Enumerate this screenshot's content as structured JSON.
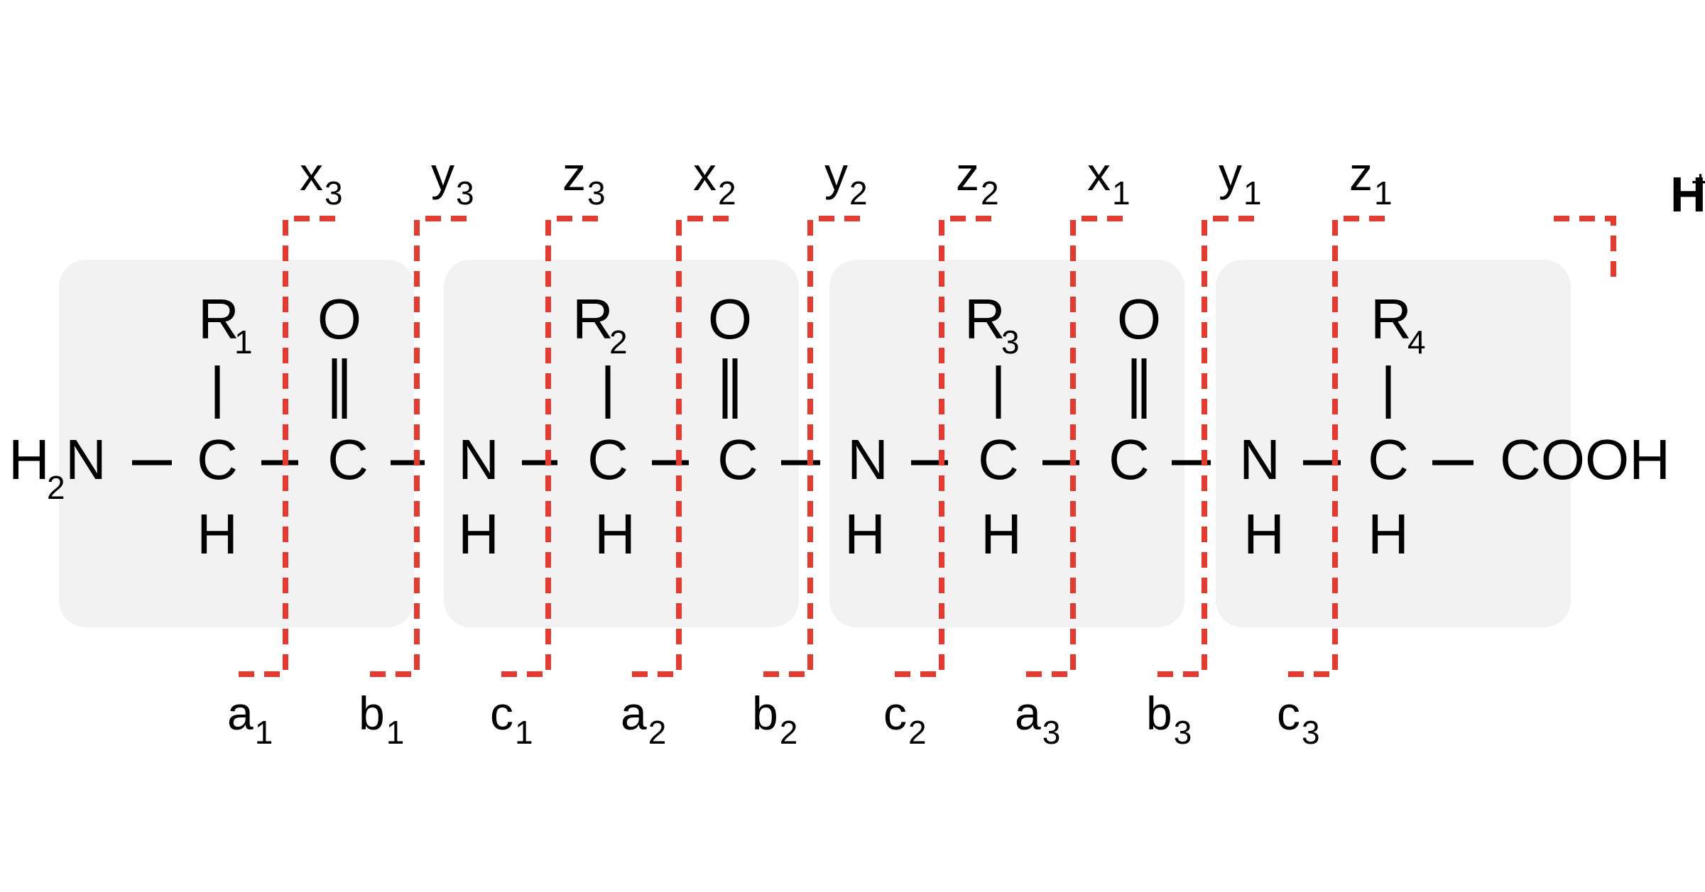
{
  "colors": {
    "cleavage_line": "#e8392e",
    "residue_box": "#f2f2f2"
  },
  "peptide": {
    "n_terminus": {
      "main": "H",
      "sub": "2",
      "tail": "N"
    },
    "c_terminus": "COOH",
    "alpha_carbon": "C",
    "carbonyl_carbon": "C",
    "carbonyl_oxygen": "O",
    "amide_nitrogen": "N",
    "hydrogen": "H",
    "side_chains": [
      {
        "main": "R",
        "sub": "1"
      },
      {
        "main": "R",
        "sub": "2"
      },
      {
        "main": "R",
        "sub": "3"
      },
      {
        "main": "R",
        "sub": "4"
      }
    ]
  },
  "charge_label": {
    "main": "H",
    "sup": "+"
  },
  "top_fragments": [
    {
      "main": "x",
      "sub": "3"
    },
    {
      "main": "y",
      "sub": "3"
    },
    {
      "main": "z",
      "sub": "3"
    },
    {
      "main": "x",
      "sub": "2"
    },
    {
      "main": "y",
      "sub": "2"
    },
    {
      "main": "z",
      "sub": "2"
    },
    {
      "main": "x",
      "sub": "1"
    },
    {
      "main": "y",
      "sub": "1"
    },
    {
      "main": "z",
      "sub": "1"
    }
  ],
  "bottom_fragments": [
    {
      "main": "a",
      "sub": "1"
    },
    {
      "main": "b",
      "sub": "1"
    },
    {
      "main": "c",
      "sub": "1"
    },
    {
      "main": "a",
      "sub": "2"
    },
    {
      "main": "b",
      "sub": "2"
    },
    {
      "main": "c",
      "sub": "2"
    },
    {
      "main": "a",
      "sub": "3"
    },
    {
      "main": "b",
      "sub": "3"
    },
    {
      "main": "c",
      "sub": "3"
    }
  ]
}
